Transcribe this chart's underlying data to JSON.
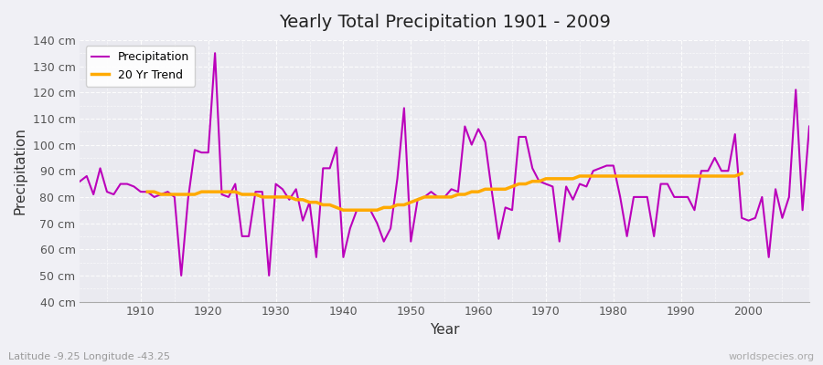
{
  "title": "Yearly Total Precipitation 1901 - 2009",
  "xlabel": "Year",
  "ylabel": "Precipitation",
  "subtitle": "Latitude -9.25 Longitude -43.25",
  "watermark": "worldspecies.org",
  "fig_bg_color": "#f0f0f5",
  "plot_bg_color": "#eaeaf0",
  "precip_color": "#bb00bb",
  "trend_color": "#ffaa00",
  "ylim": [
    40,
    140
  ],
  "yticks": [
    40,
    50,
    60,
    70,
    80,
    90,
    100,
    110,
    120,
    130,
    140
  ],
  "xlim_left": 1901,
  "xlim_right": 2009,
  "years": [
    1901,
    1902,
    1903,
    1904,
    1905,
    1906,
    1907,
    1908,
    1909,
    1910,
    1911,
    1912,
    1913,
    1914,
    1915,
    1916,
    1917,
    1918,
    1919,
    1920,
    1921,
    1922,
    1923,
    1924,
    1925,
    1926,
    1927,
    1928,
    1929,
    1930,
    1931,
    1932,
    1933,
    1934,
    1935,
    1936,
    1937,
    1938,
    1939,
    1940,
    1941,
    1942,
    1943,
    1944,
    1945,
    1946,
    1947,
    1948,
    1949,
    1950,
    1951,
    1952,
    1953,
    1954,
    1955,
    1956,
    1957,
    1958,
    1959,
    1960,
    1961,
    1962,
    1963,
    1964,
    1965,
    1966,
    1967,
    1968,
    1969,
    1970,
    1971,
    1972,
    1973,
    1974,
    1975,
    1976,
    1977,
    1978,
    1979,
    1980,
    1981,
    1982,
    1983,
    1984,
    1985,
    1986,
    1987,
    1988,
    1989,
    1990,
    1991,
    1992,
    1993,
    1994,
    1995,
    1996,
    1997,
    1998,
    1999,
    2000,
    2001,
    2002,
    2003,
    2004,
    2005,
    2006,
    2007,
    2008,
    2009
  ],
  "precip": [
    86,
    88,
    81,
    91,
    82,
    81,
    85,
    85,
    84,
    82,
    82,
    80,
    81,
    82,
    80,
    50,
    79,
    98,
    97,
    97,
    135,
    81,
    80,
    85,
    65,
    65,
    82,
    82,
    50,
    85,
    83,
    79,
    83,
    71,
    78,
    57,
    91,
    91,
    99,
    57,
    68,
    75,
    75,
    75,
    70,
    63,
    68,
    87,
    114,
    63,
    79,
    80,
    82,
    80,
    80,
    83,
    82,
    107,
    100,
    106,
    101,
    82,
    64,
    76,
    75,
    103,
    103,
    91,
    86,
    85,
    84,
    63,
    84,
    79,
    85,
    84,
    90,
    91,
    92,
    92,
    80,
    65,
    80,
    80,
    80,
    65,
    85,
    85,
    80,
    80,
    80,
    75,
    90,
    90,
    95,
    90,
    90,
    104,
    72,
    71,
    72,
    80,
    57,
    83,
    72,
    80,
    121,
    75,
    107
  ],
  "trend_years": [
    1911,
    1912,
    1913,
    1914,
    1915,
    1916,
    1917,
    1918,
    1919,
    1920,
    1921,
    1922,
    1923,
    1924,
    1925,
    1926,
    1927,
    1928,
    1929,
    1930,
    1931,
    1932,
    1933,
    1934,
    1935,
    1936,
    1937,
    1938,
    1939,
    1940,
    1941,
    1942,
    1943,
    1944,
    1945,
    1946,
    1947,
    1948,
    1949,
    1950,
    1951,
    1952,
    1953,
    1954,
    1955,
    1956,
    1957,
    1958,
    1959,
    1960,
    1961,
    1962,
    1963,
    1964,
    1965,
    1966,
    1967,
    1968,
    1969,
    1970,
    1971,
    1972,
    1973,
    1974,
    1975,
    1976,
    1977,
    1978,
    1979,
    1980,
    1981,
    1982,
    1983,
    1984,
    1985,
    1986,
    1987,
    1988,
    1989,
    1990,
    1991,
    1992,
    1993,
    1994,
    1995,
    1996,
    1997,
    1998,
    1999
  ],
  "trend": [
    82,
    82,
    81,
    81,
    81,
    81,
    81,
    81,
    82,
    82,
    82,
    82,
    82,
    82,
    81,
    81,
    81,
    80,
    80,
    80,
    80,
    80,
    79,
    79,
    78,
    78,
    77,
    77,
    76,
    75,
    75,
    75,
    75,
    75,
    75,
    76,
    76,
    77,
    77,
    78,
    79,
    80,
    80,
    80,
    80,
    80,
    81,
    81,
    82,
    82,
    83,
    83,
    83,
    83,
    84,
    85,
    85,
    86,
    86,
    87,
    87,
    87,
    87,
    87,
    88,
    88,
    88,
    88,
    88,
    88,
    88,
    88,
    88,
    88,
    88,
    88,
    88,
    88,
    88,
    88,
    88,
    88,
    88,
    88,
    88,
    88,
    88,
    88,
    89
  ]
}
